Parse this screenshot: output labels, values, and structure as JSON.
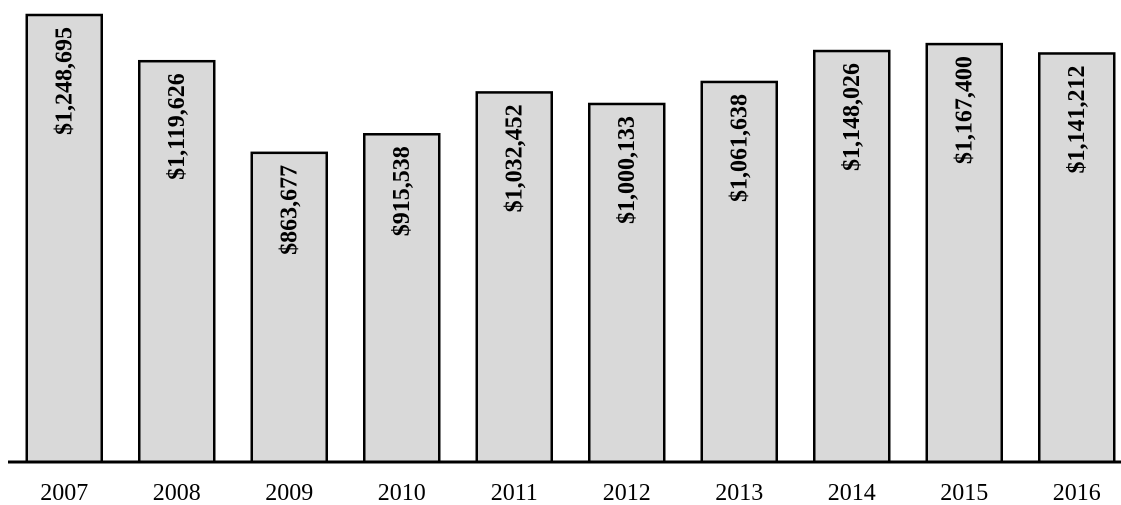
{
  "chart_data": {
    "type": "bar",
    "categories": [
      "2007",
      "2008",
      "2009",
      "2010",
      "2011",
      "2012",
      "2013",
      "2014",
      "2015",
      "2016"
    ],
    "values": [
      1248695,
      1119626,
      863677,
      915538,
      1032452,
      1000133,
      1061638,
      1148026,
      1167400,
      1141212
    ],
    "data_labels": [
      "$1,248,695",
      "$1,119,626",
      "$863,677",
      "$915,538",
      "$1,032,452",
      "$1,000,133",
      "$1,061,638",
      "$1,148,026",
      "$1,167,400",
      "$1,141,212"
    ],
    "title": "",
    "xlabel": "",
    "ylabel": "",
    "ylim": [
      0,
      1248695
    ],
    "grid": false,
    "legend": "none",
    "data_label_orientation": "vertical",
    "colors": {
      "bar_fill": "#d9d9d9",
      "bar_stroke": "#000000"
    }
  }
}
